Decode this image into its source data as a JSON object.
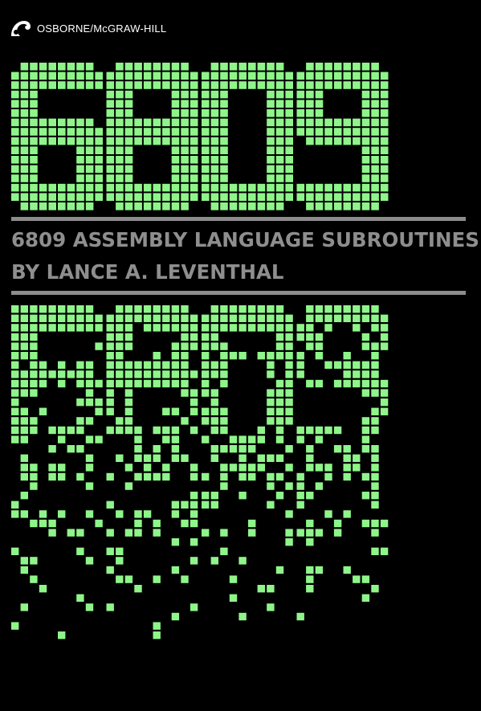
{
  "publisher": {
    "logo": "osborne-swan-logo",
    "name": "OSBORNE/McGRAW-HILL"
  },
  "cover_number": "6809",
  "title": {
    "line1": "6809 ASSEMBLY LANGUAGE SUBROUTINES",
    "line2": "BY LANCE A. LEVENTHAL"
  },
  "colors": {
    "background": "#000000",
    "matrix_green": "#8ff58a",
    "title_gray": "#8e8e8e",
    "rule_gray": "#8c8c8c",
    "publisher_white": "#ffffff"
  }
}
